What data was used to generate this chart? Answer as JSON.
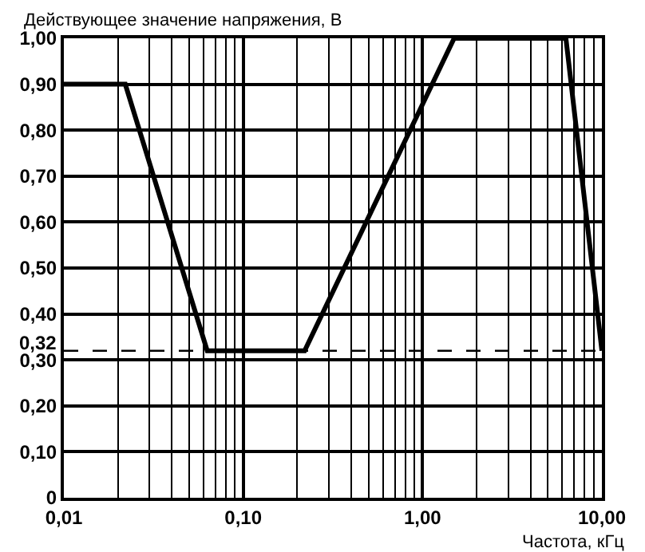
{
  "chart_data": {
    "type": "line",
    "ylabel": "Действующее значение напряжения, В",
    "xlabel": "Частота, кГц",
    "x": [
      0.01,
      0.022,
      0.063,
      0.22,
      1.5,
      6.3,
      10
    ],
    "series": [
      {
        "color": "#000000",
        "values": [
          0.9,
          0.9,
          0.32,
          0.32,
          1.0,
          1.0,
          0.32
        ]
      }
    ],
    "log": "x",
    "xlim": [
      0.01,
      10
    ],
    "xticks": [
      {
        "value": 0.01,
        "label": "0,01"
      },
      {
        "value": 0.1,
        "label": "0,10"
      },
      {
        "value": 1,
        "label": "1,00"
      },
      {
        "value": 10,
        "label": "10,00"
      }
    ],
    "ylim": [
      0,
      1
    ],
    "yticks": [
      0,
      {
        "value": 0.1,
        "label": "0,10"
      },
      {
        "value": 0.2,
        "label": "0,20"
      },
      {
        "value": 0.3,
        "label": "0,30"
      },
      {
        "value": 0.4,
        "label": "0,40"
      },
      {
        "value": 0.5,
        "label": "0,50"
      },
      {
        "value": 0.6,
        "label": "0,60"
      },
      {
        "value": 0.7,
        "label": "0,70"
      },
      {
        "value": 0.8,
        "label": "0,80"
      },
      {
        "value": 0.9,
        "label": "0,90"
      },
      {
        "value": 1,
        "label": "1,00"
      }
    ],
    "ref_lines": [
      {
        "axis": "y",
        "value": 0.32,
        "label": "0,32",
        "color": "#000000",
        "line_style": "dashed"
      }
    ],
    "grid": true,
    "marker": "none",
    "line_style": "solid"
  }
}
